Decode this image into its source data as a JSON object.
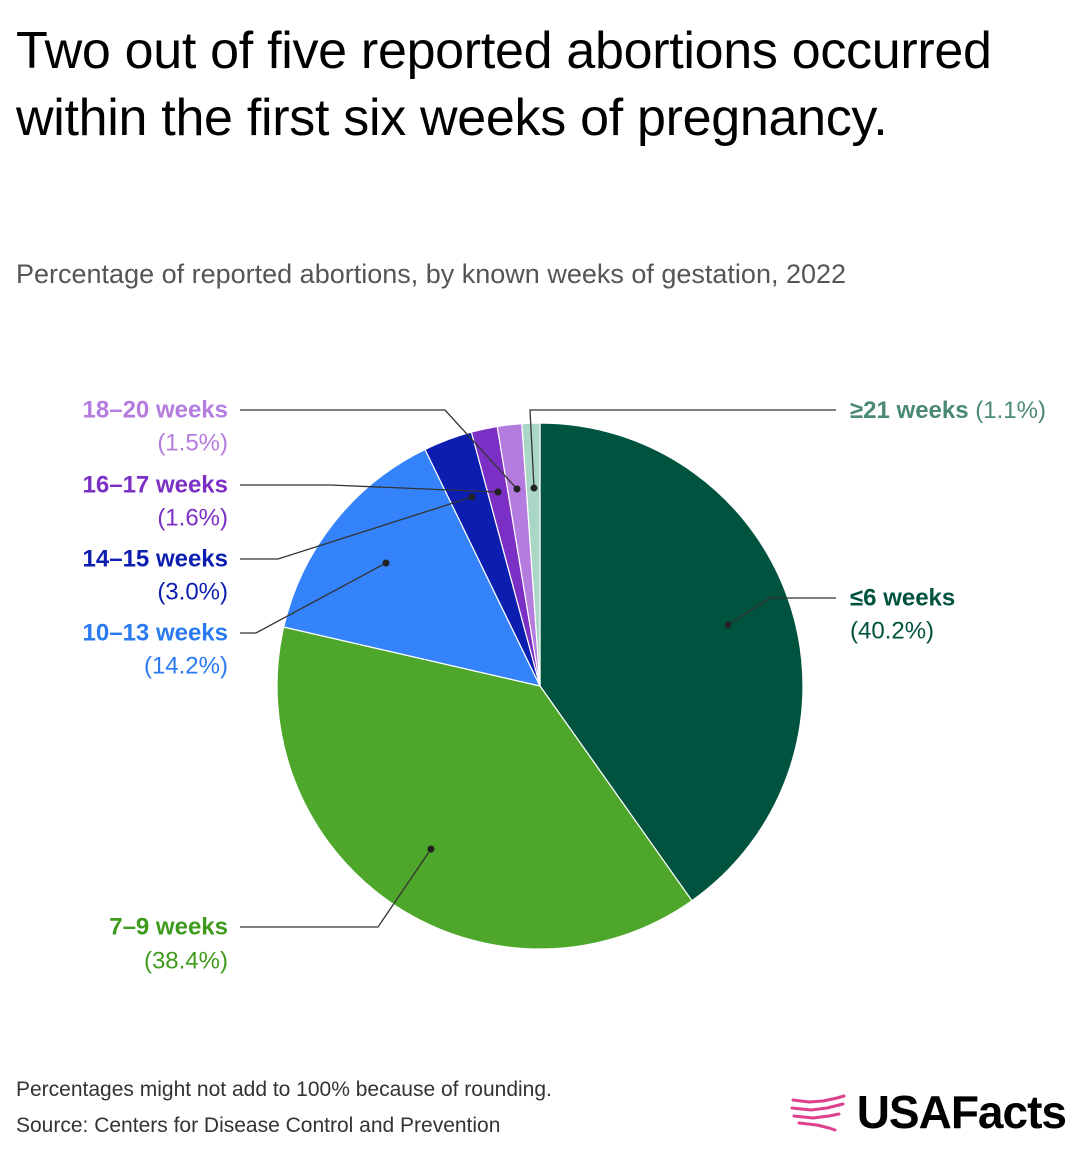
{
  "title": "Two out of five reported abortions occurred within the first six weeks of pregnancy.",
  "subtitle": "Percentage of reported abortions, by known weeks of gestation, 2022",
  "footnote": "Percentages might not add to 100% because of rounding.",
  "source": "Source: Centers for Disease Control and Prevention",
  "brand": "USAFacts",
  "colors": {
    "brand_accent": "#e0418f"
  },
  "chart_data": {
    "type": "pie",
    "title": "Two out of five reported abortions occurred within the first six weeks of pregnancy.",
    "subtitle": "Percentage of reported abortions, by known weeks of gestation, 2022",
    "unit": "%",
    "slices": [
      {
        "label": "≤6 weeks",
        "value": 40.2,
        "display": "(40.2%)",
        "color": "#00533f",
        "label_color": "#00533f"
      },
      {
        "label": "7–9 weeks",
        "value": 38.4,
        "display": "(38.4%)",
        "color": "#4ea72a",
        "label_color": "#3f9b1e"
      },
      {
        "label": "10–13 weeks",
        "value": 14.2,
        "display": "(14.2%)",
        "color": "#3483fb",
        "label_color": "#2a7bf2"
      },
      {
        "label": "14–15 weeks",
        "value": 3.0,
        "display": "(3.0%)",
        "color": "#0c1eb0",
        "label_color": "#0c1eb0"
      },
      {
        "label": "16–17 weeks",
        "value": 1.6,
        "display": "(1.6%)",
        "color": "#7b2fc4",
        "label_color": "#7b2fc4"
      },
      {
        "label": "18–20 weeks",
        "value": 1.5,
        "display": "(1.5%)",
        "color": "#b57ce0",
        "label_color": "#b57ce0"
      },
      {
        "label": "≥21 weeks",
        "value": 1.1,
        "display": "(1.1%)",
        "color": "#a9d6c5",
        "label_color": "#4b8a72"
      }
    ]
  }
}
